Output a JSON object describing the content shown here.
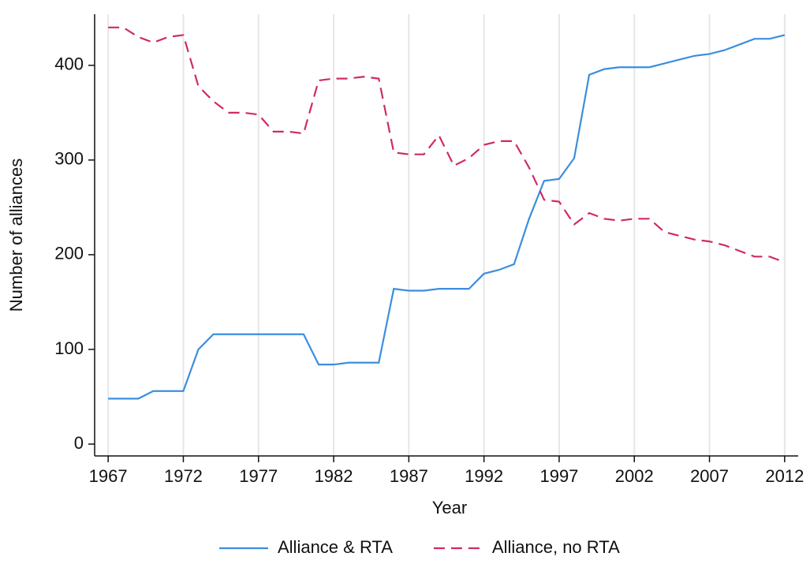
{
  "chart_data": {
    "type": "line",
    "x_label": "Year",
    "y_label": "Number of alliances",
    "x": [
      1967,
      1968,
      1969,
      1970,
      1971,
      1972,
      1973,
      1974,
      1975,
      1976,
      1977,
      1978,
      1979,
      1980,
      1981,
      1982,
      1983,
      1984,
      1985,
      1986,
      1987,
      1988,
      1989,
      1990,
      1991,
      1992,
      1993,
      1994,
      1995,
      1996,
      1997,
      1998,
      1999,
      2000,
      2001,
      2002,
      2003,
      2004,
      2005,
      2006,
      2007,
      2008,
      2009,
      2010,
      2011,
      2012
    ],
    "series": [
      {
        "name": "Alliance & RTA",
        "color": "#3b8ee0",
        "dash": false,
        "values": [
          48,
          48,
          48,
          56,
          56,
          56,
          100,
          116,
          116,
          116,
          116,
          116,
          116,
          116,
          84,
          84,
          86,
          86,
          86,
          164,
          162,
          162,
          164,
          164,
          164,
          180,
          184,
          190,
          238,
          278,
          280,
          302,
          390,
          396,
          398,
          398,
          398,
          402,
          406,
          410,
          412,
          416,
          422,
          428,
          428,
          432
        ]
      },
      {
        "name": "Alliance, no RTA",
        "color": "#d02a65",
        "dash": true,
        "values": [
          440,
          440,
          430,
          424,
          430,
          432,
          378,
          362,
          350,
          350,
          348,
          330,
          330,
          328,
          384,
          386,
          386,
          388,
          386,
          308,
          306,
          306,
          326,
          294,
          302,
          316,
          320,
          320,
          292,
          258,
          256,
          232,
          244,
          238,
          236,
          238,
          238,
          224,
          220,
          216,
          214,
          210,
          204,
          198,
          198,
          192
        ]
      }
    ],
    "xlim": [
      1966.1,
      2012.9
    ],
    "xticks": [
      1967,
      1972,
      1977,
      1982,
      1987,
      1992,
      1997,
      2002,
      2007,
      2012
    ],
    "ylim": [
      -12.5,
      454
    ],
    "yticks": [
      0,
      100,
      200,
      300,
      400
    ],
    "grid": "x",
    "legend": "bottom"
  }
}
